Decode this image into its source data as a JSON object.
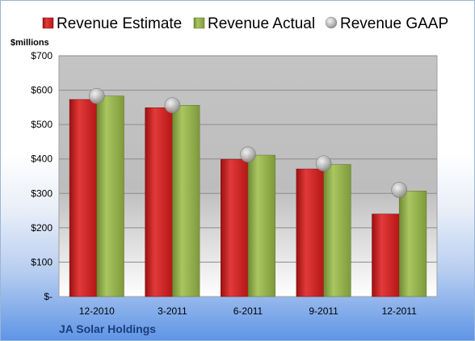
{
  "chart_data": {
    "type": "bar",
    "title": "",
    "y_unit_label": "$millions",
    "company": "JA Solar Holdings",
    "categories": [
      "12-2010",
      "3-2011",
      "6-2011",
      "9-2011",
      "12-2011"
    ],
    "y_ticks": [
      "$-",
      "$100",
      "$200",
      "$300",
      "$400",
      "$500",
      "$600",
      "$700"
    ],
    "ylim": [
      0,
      700
    ],
    "grid": true,
    "legend_placement": "top",
    "series": [
      {
        "name": "Revenue Estimate",
        "kind": "bar",
        "color": "#cc1f1f",
        "values": [
          573,
          549,
          399,
          371,
          240
        ]
      },
      {
        "name": "Revenue Actual",
        "kind": "bar",
        "color": "#8fad4a",
        "values": [
          583,
          556,
          411,
          384,
          307
        ]
      },
      {
        "name": "Revenue GAAP",
        "kind": "marker",
        "color": "#b8b8b8",
        "values": [
          583,
          556,
          413,
          387,
          310
        ]
      }
    ]
  }
}
